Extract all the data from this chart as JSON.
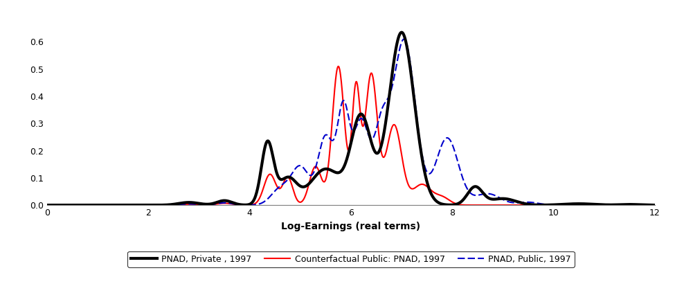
{
  "title": "",
  "xlabel": "Log-Earnings (real terms)",
  "ylabel": "",
  "xlim": [
    0,
    12
  ],
  "ylim": [
    0,
    0.7
  ],
  "yticks": [
    0.0,
    0.1,
    0.2,
    0.3,
    0.4,
    0.5,
    0.6
  ],
  "xticks": [
    0,
    2,
    4,
    6,
    8,
    10,
    12
  ],
  "private_color": "#000000",
  "counterfactual_color": "#ff0000",
  "public_color": "#0000cc",
  "private_lw": 3.0,
  "counterfactual_lw": 1.5,
  "public_lw": 1.5,
  "legend_labels": [
    "PNAD, Private , 1997",
    "Counterfactual Public: PNAD, 1997",
    "PNAD, Public, 1997"
  ],
  "background_color": "#ffffff"
}
